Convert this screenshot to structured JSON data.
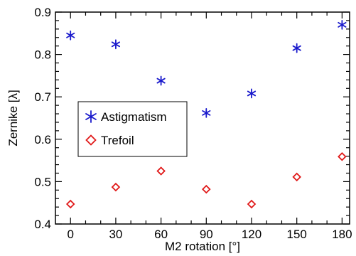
{
  "chart_data": {
    "type": "scatter",
    "xlabel": "M2 rotation [°]",
    "ylabel": "Zernike [λ]",
    "xlim": [
      -10,
      185
    ],
    "ylim": [
      0.4,
      0.9
    ],
    "xticks": [
      0,
      30,
      60,
      90,
      120,
      150,
      180
    ],
    "yticks": [
      0.4,
      0.5,
      0.6,
      0.7,
      0.8,
      0.9
    ],
    "ytick_labels": [
      "0.4",
      "0.5",
      "0.6",
      "0.7",
      "0.8",
      "0.9"
    ],
    "legend_position": "center-left",
    "series": [
      {
        "name": "Astigmatism",
        "marker": "star",
        "color": "#1a1acc",
        "x": [
          0,
          30,
          60,
          90,
          120,
          150,
          180
        ],
        "y": [
          0.845,
          0.824,
          0.738,
          0.662,
          0.708,
          0.815,
          0.87
        ]
      },
      {
        "name": "Trefoil",
        "marker": "diamond",
        "color": "#e01818",
        "x": [
          0,
          30,
          60,
          90,
          120,
          150,
          180
        ],
        "y": [
          0.447,
          0.487,
          0.525,
          0.482,
          0.447,
          0.511,
          0.559
        ]
      }
    ]
  }
}
